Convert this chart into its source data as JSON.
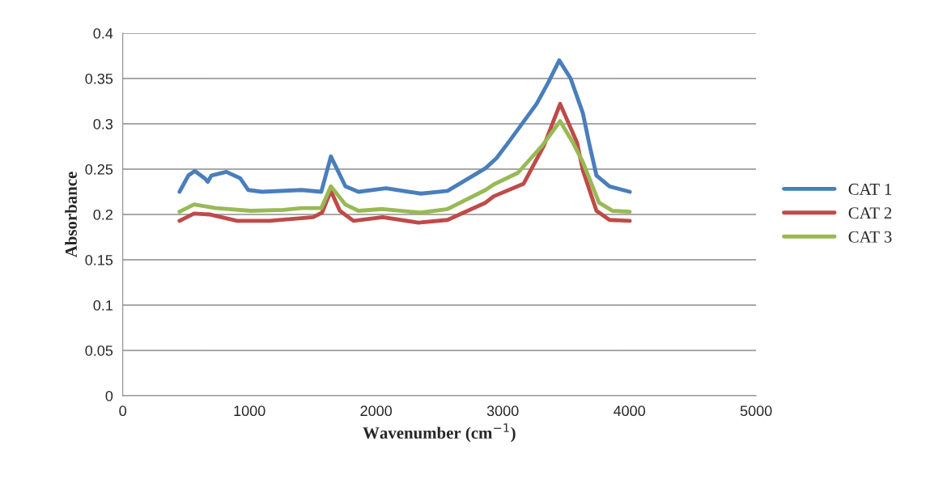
{
  "chart_data": {
    "type": "line",
    "xlabel": "Wavenumber (cm$^{−1}$)",
    "ylabel": "Absorbance",
    "xlim": [
      0,
      5000
    ],
    "xticks": [
      0,
      1000,
      2000,
      3000,
      4000,
      5000
    ],
    "ylim": [
      0,
      0.4
    ],
    "yticks": [
      0,
      0.05,
      0.1,
      0.15,
      0.2,
      0.25,
      0.3,
      0.35,
      0.4
    ],
    "grid": "y",
    "legend": "right",
    "marker": "none",
    "line_style": "solid",
    "series": [
      {
        "name": "CAT 1",
        "color": "#4a7ebb",
        "x": [
          448,
          518,
          569,
          646,
          671,
          700,
          818,
          927,
          991,
          1100,
          1413,
          1567,
          1643,
          1758,
          1861,
          2078,
          2353,
          2564,
          2864,
          2950,
          3037,
          3267,
          3357,
          3446,
          3536,
          3632,
          3683,
          3740,
          3843,
          4003
        ],
        "values": [
          0.225,
          0.243,
          0.248,
          0.24,
          0.236,
          0.243,
          0.247,
          0.24,
          0.227,
          0.225,
          0.227,
          0.225,
          0.264,
          0.231,
          0.225,
          0.229,
          0.223,
          0.226,
          0.251,
          0.262,
          0.278,
          0.322,
          0.345,
          0.37,
          0.35,
          0.312,
          0.278,
          0.243,
          0.231,
          0.225
        ]
      },
      {
        "name": "CAT 2",
        "color": "#be4b48",
        "x": [
          448,
          563,
          690,
          902,
          1157,
          1503,
          1573,
          1643,
          1714,
          1822,
          2052,
          2334,
          2564,
          2864,
          2928,
          3165,
          3325,
          3453,
          3587,
          3632,
          3740,
          3843,
          4003
        ],
        "values": [
          0.193,
          0.201,
          0.2,
          0.193,
          0.193,
          0.197,
          0.202,
          0.226,
          0.204,
          0.193,
          0.197,
          0.191,
          0.194,
          0.213,
          0.22,
          0.234,
          0.276,
          0.322,
          0.279,
          0.249,
          0.204,
          0.194,
          0.193
        ]
      },
      {
        "name": "CAT 3",
        "color": "#98b954",
        "x": [
          448,
          563,
          735,
          1010,
          1266,
          1413,
          1567,
          1643,
          1758,
          1861,
          2052,
          2353,
          2564,
          2864,
          2928,
          3120,
          3312,
          3453,
          3555,
          3632,
          3760,
          3868,
          4003
        ],
        "values": [
          0.203,
          0.211,
          0.207,
          0.204,
          0.205,
          0.207,
          0.207,
          0.231,
          0.211,
          0.204,
          0.206,
          0.202,
          0.206,
          0.227,
          0.233,
          0.246,
          0.276,
          0.303,
          0.279,
          0.258,
          0.213,
          0.204,
          0.203
        ]
      }
    ]
  }
}
